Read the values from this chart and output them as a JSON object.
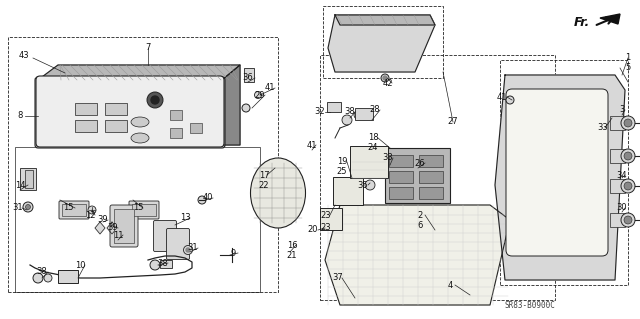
{
  "bg": "#ffffff",
  "lc": "#222222",
  "tc": "#111111",
  "gray_light": "#d8d8d8",
  "gray_mid": "#b8b8b8",
  "gray_dark": "#888888",
  "diagram_code": "SR83-B0900C",
  "lw": 0.8
}
